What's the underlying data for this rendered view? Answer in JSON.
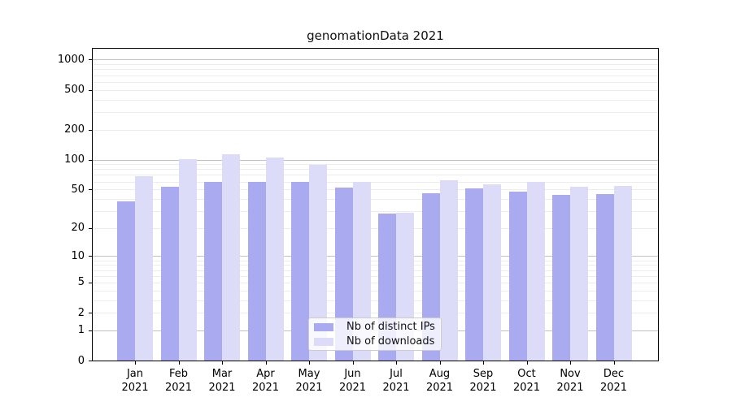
{
  "figure": {
    "title": "genomationData 2021"
  },
  "chart_data": {
    "type": "bar",
    "title": "genomationData 2021",
    "categories": [
      "Jan",
      "Feb",
      "Mar",
      "Apr",
      "May",
      "Jun",
      "Jul",
      "Aug",
      "Sep",
      "Oct",
      "Nov",
      "Dec"
    ],
    "year_label": "2021",
    "series": [
      {
        "name": "Nb of distinct IPs",
        "color": "#aaaaf0",
        "values": [
          38,
          53,
          60,
          60,
          60,
          52,
          28,
          46,
          51,
          47,
          44,
          45
        ]
      },
      {
        "name": "Nb of downloads",
        "color": "#dcdcf8",
        "values": [
          68,
          101,
          113,
          105,
          88,
          60,
          29,
          62,
          56,
          59,
          53,
          54
        ]
      }
    ],
    "xlabel": "",
    "ylabel": "",
    "y_ticks": [
      0,
      1,
      2,
      5,
      10,
      20,
      50,
      100,
      200,
      500,
      1000
    ],
    "y_scale": "log1p",
    "ylim": [
      0,
      1300
    ],
    "grid": true,
    "grid_minor_color": "#ececec",
    "grid_major_color": "#c0c0c0",
    "axis_color": "#000000",
    "background_color": "#ffffff",
    "legend_position": "lower-center"
  }
}
